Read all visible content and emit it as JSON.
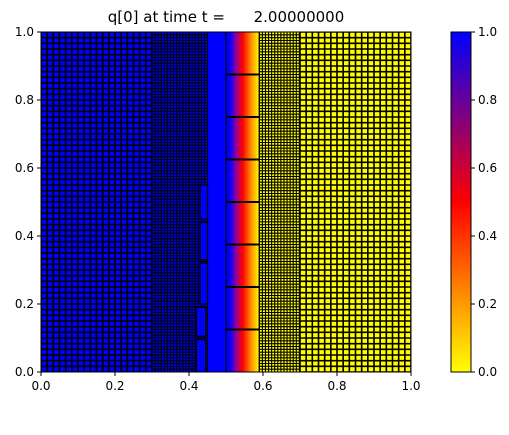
{
  "chart_data": {
    "type": "heatmap",
    "title": "q[0] at time t =      2.00000000",
    "xlim": [
      0.0,
      1.0
    ],
    "ylim": [
      0.0,
      1.0
    ],
    "x_ticks": [
      "0.0",
      "0.2",
      "0.4",
      "0.6",
      "0.8",
      "1.0"
    ],
    "y_ticks": [
      "0.0",
      "0.2",
      "0.4",
      "0.6",
      "0.8",
      "1.0"
    ],
    "colorbar": {
      "range": [
        0.0,
        1.0
      ],
      "ticks": [
        "0.0",
        "0.2",
        "0.4",
        "0.6",
        "0.8",
        "1.0"
      ],
      "colors": [
        "#ffff00",
        "#ff8000",
        "#ff0000",
        "#800080",
        "#0000ff"
      ]
    },
    "field": {
      "left_value": 1.0,
      "right_value": 0.0,
      "front_start_x": 0.5,
      "front_end_x": 0.59
    },
    "mesh_regions": [
      {
        "x": [
          0.0,
          0.3
        ],
        "y": [
          0.0,
          1.0
        ],
        "cells_per_unit": 60
      },
      {
        "x": [
          0.3,
          0.45
        ],
        "y": [
          0.0,
          1.0
        ],
        "cells_per_unit": 120
      },
      {
        "x": [
          0.45,
          0.59
        ],
        "y": [
          0.0,
          1.0
        ],
        "cells_per_unit": 0
      },
      {
        "x": [
          0.59,
          0.7
        ],
        "y": [
          0.0,
          1.0
        ],
        "cells_per_unit": 120
      },
      {
        "x": [
          0.7,
          1.0
        ],
        "y": [
          0.0,
          1.0
        ],
        "cells_per_unit": 60
      }
    ],
    "patch_lines_y": [
      0.125,
      0.25,
      0.375,
      0.5,
      0.625,
      0.75,
      0.875
    ],
    "patch_lines_x": [
      0.5,
      0.59
    ],
    "small_patches": [
      {
        "x": [
          0.42,
          0.445
        ],
        "y": [
          0.0,
          0.095
        ]
      },
      {
        "x": [
          0.42,
          0.445
        ],
        "y": [
          0.105,
          0.19
        ]
      },
      {
        "x": [
          0.43,
          0.45
        ],
        "y": [
          0.2,
          0.32
        ]
      },
      {
        "x": [
          0.43,
          0.45
        ],
        "y": [
          0.33,
          0.44
        ]
      },
      {
        "x": [
          0.43,
          0.45
        ],
        "y": [
          0.45,
          0.55
        ]
      }
    ]
  }
}
